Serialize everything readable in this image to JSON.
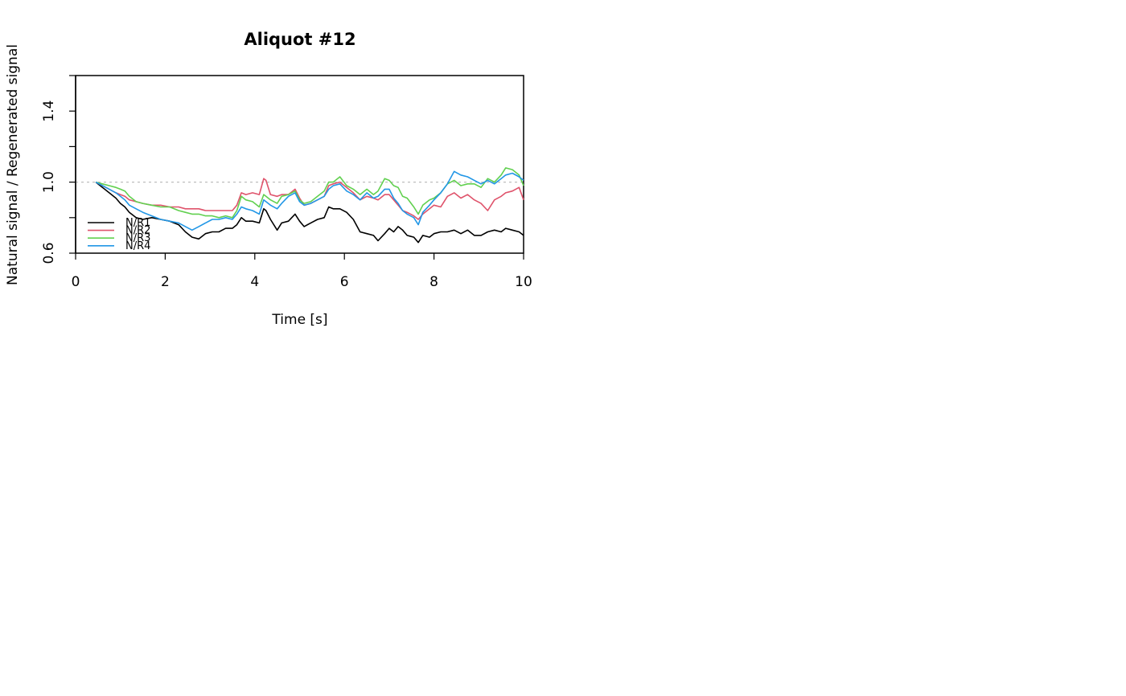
{
  "chart_data": {
    "type": "line",
    "title": "Aliquot #12",
    "xlabel": "Time [s]",
    "ylabel": "Natural signal / Regenerated signal",
    "xlim": [
      0,
      10
    ],
    "ylim": [
      0.6,
      1.6
    ],
    "x_ticks": [
      0,
      2,
      4,
      6,
      8,
      10
    ],
    "y_ticks": [
      0.6,
      1.0,
      1.4
    ],
    "y_minor_ticks": [
      0.8,
      1.2,
      1.6
    ],
    "reference_line": {
      "y": 1.0,
      "style": "dotted",
      "color": "#bebebe"
    },
    "grid": false,
    "legend": {
      "position": "bottom-left",
      "frame": false
    },
    "series": [
      {
        "name": "N/R1",
        "color": "#000000",
        "x": [
          0.45,
          0.6,
          0.75,
          0.9,
          1.0,
          1.1,
          1.2,
          1.35,
          1.5,
          1.7,
          1.9,
          2.1,
          2.3,
          2.45,
          2.6,
          2.75,
          2.9,
          3.05,
          3.2,
          3.35,
          3.5,
          3.6,
          3.7,
          3.8,
          3.95,
          4.1,
          4.2,
          4.25,
          4.35,
          4.5,
          4.6,
          4.75,
          4.9,
          5.0,
          5.1,
          5.25,
          5.4,
          5.55,
          5.65,
          5.75,
          5.9,
          6.05,
          6.2,
          6.35,
          6.5,
          6.65,
          6.75,
          6.9,
          7.0,
          7.1,
          7.2,
          7.3,
          7.4,
          7.55,
          7.65,
          7.75,
          7.9,
          8.0,
          8.15,
          8.3,
          8.45,
          8.6,
          8.75,
          8.9,
          9.05,
          9.2,
          9.35,
          9.5,
          9.6,
          9.75,
          9.9,
          10.0
        ],
        "y": [
          1.0,
          0.97,
          0.94,
          0.91,
          0.88,
          0.86,
          0.83,
          0.8,
          0.79,
          0.8,
          0.79,
          0.78,
          0.76,
          0.72,
          0.69,
          0.68,
          0.71,
          0.72,
          0.72,
          0.74,
          0.74,
          0.76,
          0.8,
          0.78,
          0.78,
          0.77,
          0.85,
          0.84,
          0.79,
          0.73,
          0.77,
          0.78,
          0.82,
          0.78,
          0.75,
          0.77,
          0.79,
          0.8,
          0.86,
          0.85,
          0.85,
          0.83,
          0.79,
          0.72,
          0.71,
          0.7,
          0.67,
          0.71,
          0.74,
          0.72,
          0.75,
          0.73,
          0.7,
          0.69,
          0.66,
          0.7,
          0.69,
          0.71,
          0.72,
          0.72,
          0.73,
          0.71,
          0.73,
          0.7,
          0.7,
          0.72,
          0.73,
          0.72,
          0.74,
          0.73,
          0.72,
          0.7
        ]
      },
      {
        "name": "N/R2",
        "color": "#df536b",
        "x": [
          0.45,
          0.6,
          0.75,
          0.9,
          1.0,
          1.1,
          1.2,
          1.35,
          1.5,
          1.7,
          1.9,
          2.1,
          2.3,
          2.45,
          2.6,
          2.75,
          2.9,
          3.05,
          3.2,
          3.35,
          3.5,
          3.6,
          3.7,
          3.8,
          3.95,
          4.1,
          4.2,
          4.25,
          4.35,
          4.5,
          4.6,
          4.75,
          4.9,
          5.0,
          5.1,
          5.25,
          5.4,
          5.55,
          5.65,
          5.75,
          5.9,
          6.05,
          6.2,
          6.35,
          6.5,
          6.65,
          6.75,
          6.9,
          7.0,
          7.1,
          7.2,
          7.3,
          7.4,
          7.55,
          7.65,
          7.75,
          7.9,
          8.0,
          8.15,
          8.3,
          8.45,
          8.6,
          8.75,
          8.9,
          9.05,
          9.2,
          9.35,
          9.5,
          9.6,
          9.75,
          9.9,
          10.0
        ],
        "y": [
          1.0,
          0.98,
          0.96,
          0.94,
          0.93,
          0.92,
          0.9,
          0.89,
          0.88,
          0.87,
          0.87,
          0.86,
          0.86,
          0.85,
          0.85,
          0.85,
          0.84,
          0.84,
          0.84,
          0.84,
          0.84,
          0.87,
          0.94,
          0.93,
          0.94,
          0.93,
          1.02,
          1.01,
          0.93,
          0.92,
          0.93,
          0.93,
          0.96,
          0.91,
          0.87,
          0.88,
          0.9,
          0.92,
          0.98,
          0.99,
          1.0,
          0.97,
          0.94,
          0.9,
          0.92,
          0.91,
          0.9,
          0.93,
          0.93,
          0.9,
          0.87,
          0.84,
          0.83,
          0.81,
          0.79,
          0.82,
          0.85,
          0.87,
          0.86,
          0.92,
          0.94,
          0.91,
          0.93,
          0.9,
          0.88,
          0.84,
          0.9,
          0.92,
          0.94,
          0.95,
          0.97,
          0.9
        ]
      },
      {
        "name": "N/R3",
        "color": "#61d04f",
        "x": [
          0.45,
          0.6,
          0.75,
          0.9,
          1.0,
          1.1,
          1.2,
          1.35,
          1.5,
          1.7,
          1.9,
          2.1,
          2.3,
          2.45,
          2.6,
          2.75,
          2.9,
          3.05,
          3.2,
          3.35,
          3.5,
          3.6,
          3.7,
          3.8,
          3.95,
          4.1,
          4.2,
          4.25,
          4.35,
          4.5,
          4.6,
          4.75,
          4.9,
          5.0,
          5.1,
          5.25,
          5.4,
          5.55,
          5.65,
          5.75,
          5.9,
          6.05,
          6.2,
          6.35,
          6.5,
          6.65,
          6.75,
          6.9,
          7.0,
          7.1,
          7.2,
          7.3,
          7.4,
          7.55,
          7.65,
          7.75,
          7.9,
          8.0,
          8.15,
          8.3,
          8.45,
          8.6,
          8.75,
          8.9,
          9.05,
          9.2,
          9.35,
          9.5,
          9.6,
          9.75,
          9.9,
          10.0
        ],
        "y": [
          1.0,
          0.99,
          0.98,
          0.97,
          0.96,
          0.95,
          0.92,
          0.89,
          0.88,
          0.87,
          0.86,
          0.86,
          0.84,
          0.83,
          0.82,
          0.82,
          0.81,
          0.81,
          0.8,
          0.81,
          0.8,
          0.84,
          0.92,
          0.9,
          0.89,
          0.86,
          0.93,
          0.92,
          0.9,
          0.88,
          0.92,
          0.93,
          0.95,
          0.9,
          0.88,
          0.89,
          0.92,
          0.95,
          1.0,
          1.0,
          1.03,
          0.98,
          0.96,
          0.93,
          0.96,
          0.93,
          0.95,
          1.02,
          1.01,
          0.98,
          0.97,
          0.92,
          0.91,
          0.86,
          0.82,
          0.87,
          0.9,
          0.91,
          0.94,
          0.99,
          1.01,
          0.98,
          0.99,
          0.99,
          0.97,
          1.02,
          1.0,
          1.04,
          1.08,
          1.07,
          1.04,
          0.98
        ]
      },
      {
        "name": "N/R4",
        "color": "#2297e6",
        "x": [
          0.45,
          0.6,
          0.75,
          0.9,
          1.0,
          1.1,
          1.2,
          1.35,
          1.5,
          1.7,
          1.9,
          2.1,
          2.3,
          2.45,
          2.6,
          2.75,
          2.9,
          3.05,
          3.2,
          3.35,
          3.5,
          3.6,
          3.7,
          3.8,
          3.95,
          4.1,
          4.2,
          4.25,
          4.35,
          4.5,
          4.6,
          4.75,
          4.9,
          5.0,
          5.1,
          5.25,
          5.4,
          5.55,
          5.65,
          5.75,
          5.9,
          6.05,
          6.2,
          6.35,
          6.5,
          6.65,
          6.75,
          6.9,
          7.0,
          7.1,
          7.2,
          7.3,
          7.4,
          7.55,
          7.65,
          7.75,
          7.9,
          8.0,
          8.15,
          8.3,
          8.45,
          8.6,
          8.75,
          8.9,
          9.05,
          9.2,
          9.35,
          9.5,
          9.6,
          9.75,
          9.9,
          10.0
        ],
        "y": [
          1.0,
          0.98,
          0.96,
          0.94,
          0.92,
          0.9,
          0.87,
          0.85,
          0.83,
          0.81,
          0.79,
          0.78,
          0.77,
          0.75,
          0.73,
          0.75,
          0.77,
          0.79,
          0.79,
          0.8,
          0.79,
          0.82,
          0.86,
          0.85,
          0.84,
          0.82,
          0.9,
          0.89,
          0.87,
          0.85,
          0.88,
          0.92,
          0.94,
          0.89,
          0.87,
          0.88,
          0.9,
          0.92,
          0.96,
          0.98,
          0.99,
          0.95,
          0.93,
          0.9,
          0.94,
          0.91,
          0.92,
          0.96,
          0.96,
          0.91,
          0.88,
          0.84,
          0.82,
          0.8,
          0.76,
          0.83,
          0.87,
          0.9,
          0.94,
          0.99,
          1.06,
          1.04,
          1.03,
          1.01,
          0.99,
          1.01,
          0.99,
          1.02,
          1.04,
          1.05,
          1.03,
          1.01
        ]
      }
    ]
  }
}
